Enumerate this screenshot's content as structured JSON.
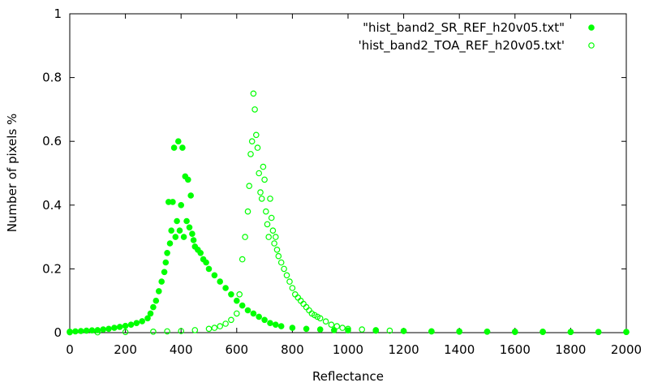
{
  "chart_data": {
    "type": "scatter",
    "title": "",
    "xlabel": "Reflectance",
    "ylabel": "Number of pixels %",
    "xlim": [
      0,
      2000
    ],
    "ylim": [
      0,
      1
    ],
    "xticks": [
      "0",
      "200",
      "400",
      "600",
      "800",
      "1000",
      "1200",
      "1400",
      "1600",
      "1800",
      "2000"
    ],
    "yticks": [
      "0",
      "0.2",
      "0.4",
      "0.6",
      "0.8",
      "1"
    ],
    "grid": false,
    "legend_position": "top-right",
    "series": [
      {
        "name": "\"hist_band2_SR_REF_h20v05.txt\"",
        "marker": "filled-circle",
        "color": "#00ff00",
        "points": [
          [
            0,
            0.003
          ],
          [
            20,
            0.004
          ],
          [
            40,
            0.005
          ],
          [
            60,
            0.006
          ],
          [
            80,
            0.007
          ],
          [
            100,
            0.008
          ],
          [
            120,
            0.01
          ],
          [
            140,
            0.012
          ],
          [
            160,
            0.015
          ],
          [
            180,
            0.018
          ],
          [
            200,
            0.021
          ],
          [
            220,
            0.025
          ],
          [
            240,
            0.03
          ],
          [
            260,
            0.036
          ],
          [
            280,
            0.045
          ],
          [
            290,
            0.06
          ],
          [
            300,
            0.08
          ],
          [
            310,
            0.1
          ],
          [
            320,
            0.13
          ],
          [
            330,
            0.16
          ],
          [
            340,
            0.19
          ],
          [
            345,
            0.22
          ],
          [
            350,
            0.25
          ],
          [
            355,
            0.41
          ],
          [
            360,
            0.28
          ],
          [
            365,
            0.32
          ],
          [
            370,
            0.41
          ],
          [
            375,
            0.58
          ],
          [
            380,
            0.3
          ],
          [
            385,
            0.35
          ],
          [
            390,
            0.6
          ],
          [
            395,
            0.32
          ],
          [
            400,
            0.4
          ],
          [
            405,
            0.58
          ],
          [
            410,
            0.3
          ],
          [
            415,
            0.49
          ],
          [
            420,
            0.35
          ],
          [
            425,
            0.48
          ],
          [
            430,
            0.33
          ],
          [
            435,
            0.43
          ],
          [
            440,
            0.31
          ],
          [
            445,
            0.29
          ],
          [
            450,
            0.27
          ],
          [
            460,
            0.26
          ],
          [
            470,
            0.25
          ],
          [
            480,
            0.23
          ],
          [
            490,
            0.22
          ],
          [
            500,
            0.2
          ],
          [
            520,
            0.18
          ],
          [
            540,
            0.16
          ],
          [
            560,
            0.14
          ],
          [
            580,
            0.12
          ],
          [
            600,
            0.1
          ],
          [
            620,
            0.085
          ],
          [
            640,
            0.07
          ],
          [
            660,
            0.06
          ],
          [
            680,
            0.05
          ],
          [
            700,
            0.04
          ],
          [
            720,
            0.03
          ],
          [
            740,
            0.025
          ],
          [
            760,
            0.02
          ],
          [
            800,
            0.015
          ],
          [
            850,
            0.012
          ],
          [
            900,
            0.01
          ],
          [
            950,
            0.008
          ],
          [
            1000,
            0.007
          ],
          [
            1100,
            0.006
          ],
          [
            1200,
            0.005
          ],
          [
            1300,
            0.004
          ],
          [
            1400,
            0.004
          ],
          [
            1500,
            0.003
          ],
          [
            1600,
            0.003
          ],
          [
            1700,
            0.003
          ],
          [
            1800,
            0.002
          ],
          [
            1900,
            0.002
          ],
          [
            2000,
            0.002
          ]
        ]
      },
      {
        "name": "'hist_band2_TOA_REF_h20v05.txt'",
        "marker": "open-circle",
        "color": "#00ff00",
        "points": [
          [
            0,
            0.001
          ],
          [
            100,
            0.001
          ],
          [
            200,
            0.002
          ],
          [
            300,
            0.003
          ],
          [
            350,
            0.004
          ],
          [
            400,
            0.005
          ],
          [
            450,
            0.008
          ],
          [
            500,
            0.012
          ],
          [
            520,
            0.015
          ],
          [
            540,
            0.02
          ],
          [
            560,
            0.028
          ],
          [
            580,
            0.04
          ],
          [
            600,
            0.06
          ],
          [
            610,
            0.12
          ],
          [
            620,
            0.23
          ],
          [
            630,
            0.3
          ],
          [
            640,
            0.38
          ],
          [
            645,
            0.46
          ],
          [
            650,
            0.56
          ],
          [
            655,
            0.6
          ],
          [
            660,
            0.75
          ],
          [
            665,
            0.7
          ],
          [
            670,
            0.62
          ],
          [
            675,
            0.58
          ],
          [
            680,
            0.5
          ],
          [
            685,
            0.44
          ],
          [
            690,
            0.42
          ],
          [
            695,
            0.52
          ],
          [
            700,
            0.48
          ],
          [
            705,
            0.38
          ],
          [
            710,
            0.34
          ],
          [
            715,
            0.3
          ],
          [
            720,
            0.42
          ],
          [
            725,
            0.36
          ],
          [
            730,
            0.32
          ],
          [
            735,
            0.28
          ],
          [
            740,
            0.3
          ],
          [
            745,
            0.26
          ],
          [
            750,
            0.24
          ],
          [
            760,
            0.22
          ],
          [
            770,
            0.2
          ],
          [
            780,
            0.18
          ],
          [
            790,
            0.16
          ],
          [
            800,
            0.14
          ],
          [
            810,
            0.12
          ],
          [
            820,
            0.11
          ],
          [
            830,
            0.1
          ],
          [
            840,
            0.09
          ],
          [
            850,
            0.08
          ],
          [
            860,
            0.07
          ],
          [
            870,
            0.06
          ],
          [
            880,
            0.055
          ],
          [
            890,
            0.05
          ],
          [
            900,
            0.045
          ],
          [
            920,
            0.035
          ],
          [
            940,
            0.025
          ],
          [
            960,
            0.02
          ],
          [
            980,
            0.015
          ],
          [
            1000,
            0.012
          ],
          [
            1050,
            0.01
          ],
          [
            1100,
            0.008
          ],
          [
            1150,
            0.006
          ],
          [
            1200,
            0.005
          ],
          [
            1300,
            0.004
          ],
          [
            1400,
            0.003
          ],
          [
            1500,
            0.003
          ],
          [
            1600,
            0.002
          ],
          [
            1700,
            0.002
          ],
          [
            1800,
            0.002
          ],
          [
            1900,
            0.002
          ],
          [
            2000,
            0.002
          ]
        ]
      }
    ]
  }
}
